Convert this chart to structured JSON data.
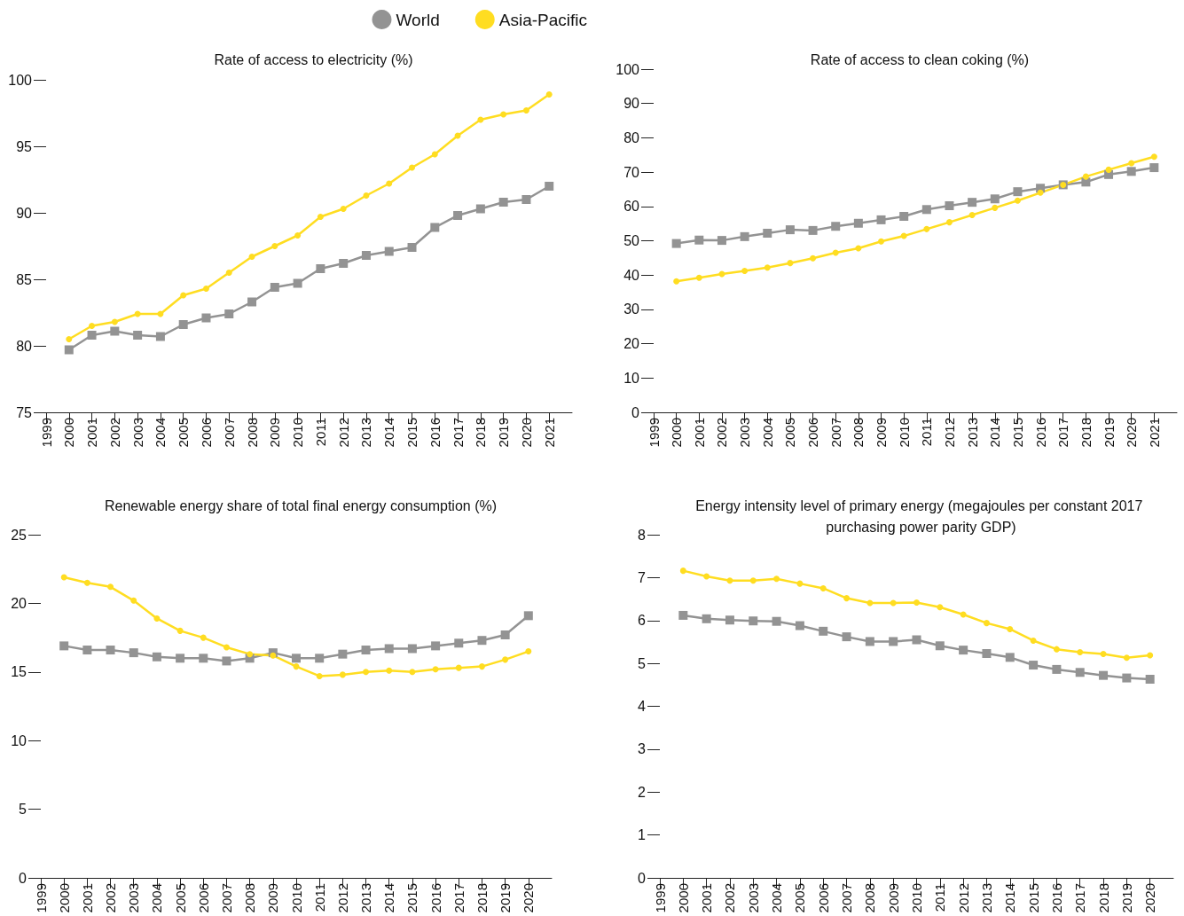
{
  "chart_data": [
    {
      "type": "line",
      "title": "Rate of access to electricity (%)",
      "legend": "top",
      "grid": false,
      "x": [
        2000,
        2001,
        2002,
        2003,
        2004,
        2005,
        2006,
        2007,
        2008,
        2009,
        2010,
        2011,
        2012,
        2013,
        2014,
        2015,
        2016,
        2017,
        2018,
        2019,
        2020,
        2021
      ],
      "xlim": [
        1999,
        2022
      ],
      "xticks": [
        1999,
        2000,
        2001,
        2002,
        2003,
        2004,
        2005,
        2006,
        2007,
        2008,
        2009,
        2010,
        2011,
        2012,
        2013,
        2014,
        2015,
        2016,
        2017,
        2018,
        2019,
        2020,
        2021
      ],
      "ylim": [
        75,
        100
      ],
      "yticks": [
        75,
        80,
        85,
        90,
        95,
        100
      ],
      "series": [
        {
          "name": "World",
          "color": "#939393",
          "marker": "square",
          "values": [
            79.7,
            80.8,
            81.1,
            80.8,
            80.7,
            81.6,
            82.1,
            82.4,
            83.3,
            84.4,
            84.7,
            85.8,
            86.2,
            86.8,
            87.1,
            87.4,
            88.9,
            89.8,
            90.3,
            90.8,
            91.0,
            92.0
          ]
        },
        {
          "name": "Asia-Pacific",
          "color": "#ffdd21",
          "marker": "circle",
          "values": [
            80.5,
            81.5,
            81.8,
            82.4,
            82.4,
            83.8,
            84.3,
            85.5,
            86.7,
            87.5,
            88.3,
            89.7,
            90.3,
            91.3,
            92.2,
            93.4,
            94.4,
            95.8,
            97.0,
            97.4,
            97.7,
            98.9
          ]
        }
      ]
    },
    {
      "type": "line",
      "title": "Rate of access to clean coking (%)",
      "grid": false,
      "x": [
        2000,
        2001,
        2002,
        2003,
        2004,
        2005,
        2006,
        2007,
        2008,
        2009,
        2010,
        2011,
        2012,
        2013,
        2014,
        2015,
        2016,
        2017,
        2018,
        2019,
        2020,
        2021
      ],
      "xlim": [
        1999,
        2022
      ],
      "xticks": [
        1999,
        2000,
        2001,
        2002,
        2003,
        2004,
        2005,
        2006,
        2007,
        2008,
        2009,
        2010,
        2011,
        2012,
        2013,
        2014,
        2015,
        2016,
        2017,
        2018,
        2019,
        2020,
        2021
      ],
      "ylim": [
        0,
        100
      ],
      "yticks": [
        0,
        10,
        20,
        30,
        40,
        50,
        60,
        70,
        80,
        90,
        100
      ],
      "series": [
        {
          "color": "#939393",
          "marker": "square",
          "values": [
            49.2,
            50.2,
            50.1,
            51.2,
            52.2,
            53.2,
            53.0,
            54.2,
            55.1,
            56.1,
            57.1,
            59.1,
            60.2,
            61.2,
            62.2,
            64.3,
            65.3,
            66.3,
            67.1,
            69.3,
            70.2,
            71.3
          ]
        },
        {
          "color": "#ffdd21",
          "marker": "circle",
          "values": [
            38.2,
            39.2,
            40.3,
            41.2,
            42.2,
            43.5,
            44.9,
            46.5,
            47.8,
            49.8,
            51.4,
            53.4,
            55.4,
            57.5,
            59.6,
            61.7,
            64.0,
            66.3,
            68.7,
            70.7,
            72.6,
            74.5
          ]
        }
      ]
    },
    {
      "type": "line",
      "title": "Renewable energy share of total final energy consumption (%)",
      "grid": false,
      "x": [
        2000,
        2001,
        2002,
        2003,
        2004,
        2005,
        2006,
        2007,
        2008,
        2009,
        2010,
        2011,
        2012,
        2013,
        2014,
        2015,
        2016,
        2017,
        2018,
        2019,
        2020
      ],
      "xlim": [
        1999,
        2021
      ],
      "xticks": [
        1999,
        2000,
        2001,
        2002,
        2003,
        2004,
        2005,
        2006,
        2007,
        2008,
        2009,
        2010,
        2011,
        2012,
        2013,
        2014,
        2015,
        2016,
        2017,
        2018,
        2019,
        2020
      ],
      "ylim": [
        0,
        25
      ],
      "yticks": [
        0,
        5,
        10,
        15,
        20,
        25
      ],
      "series": [
        {
          "color": "#939393",
          "marker": "square",
          "values": [
            16.9,
            16.6,
            16.6,
            16.4,
            16.1,
            16.0,
            16.0,
            15.8,
            16.0,
            16.4,
            16.0,
            16.0,
            16.3,
            16.6,
            16.7,
            16.7,
            16.9,
            17.1,
            17.3,
            17.7,
            19.1
          ]
        },
        {
          "color": "#ffdd21",
          "marker": "circle",
          "values": [
            21.9,
            21.5,
            21.2,
            20.2,
            18.9,
            18.0,
            17.5,
            16.8,
            16.3,
            16.2,
            15.4,
            14.7,
            14.8,
            15.0,
            15.1,
            15.0,
            15.2,
            15.3,
            15.4,
            15.9,
            16.5
          ]
        }
      ]
    },
    {
      "type": "line",
      "title": "Energy intensity level of primary energy (megajoules per constant 2017 purchasing power parity GDP)",
      "grid": false,
      "x": [
        2000,
        2001,
        2002,
        2003,
        2004,
        2005,
        2006,
        2007,
        2008,
        2009,
        2010,
        2011,
        2012,
        2013,
        2014,
        2015,
        2016,
        2017,
        2018,
        2019,
        2020
      ],
      "xlim": [
        1999,
        2021
      ],
      "xticks": [
        1999,
        2000,
        2001,
        2002,
        2003,
        2004,
        2005,
        2006,
        2007,
        2008,
        2009,
        2010,
        2011,
        2012,
        2013,
        2014,
        2015,
        2016,
        2017,
        2018,
        2019,
        2020
      ],
      "ylim": [
        0,
        8
      ],
      "yticks": [
        0,
        1,
        2,
        3,
        4,
        5,
        6,
        7,
        8
      ],
      "series": [
        {
          "color": "#939393",
          "marker": "square",
          "values": [
            6.12,
            6.04,
            6.01,
            5.99,
            5.98,
            5.88,
            5.75,
            5.62,
            5.51,
            5.51,
            5.55,
            5.41,
            5.31,
            5.23,
            5.14,
            4.96,
            4.86,
            4.79,
            4.72,
            4.66,
            4.63
          ]
        },
        {
          "color": "#ffdd21",
          "marker": "circle",
          "values": [
            7.16,
            7.03,
            6.93,
            6.93,
            6.97,
            6.86,
            6.75,
            6.52,
            6.41,
            6.41,
            6.42,
            6.31,
            6.14,
            5.94,
            5.8,
            5.53,
            5.33,
            5.26,
            5.22,
            5.13,
            5.19
          ]
        }
      ]
    }
  ]
}
